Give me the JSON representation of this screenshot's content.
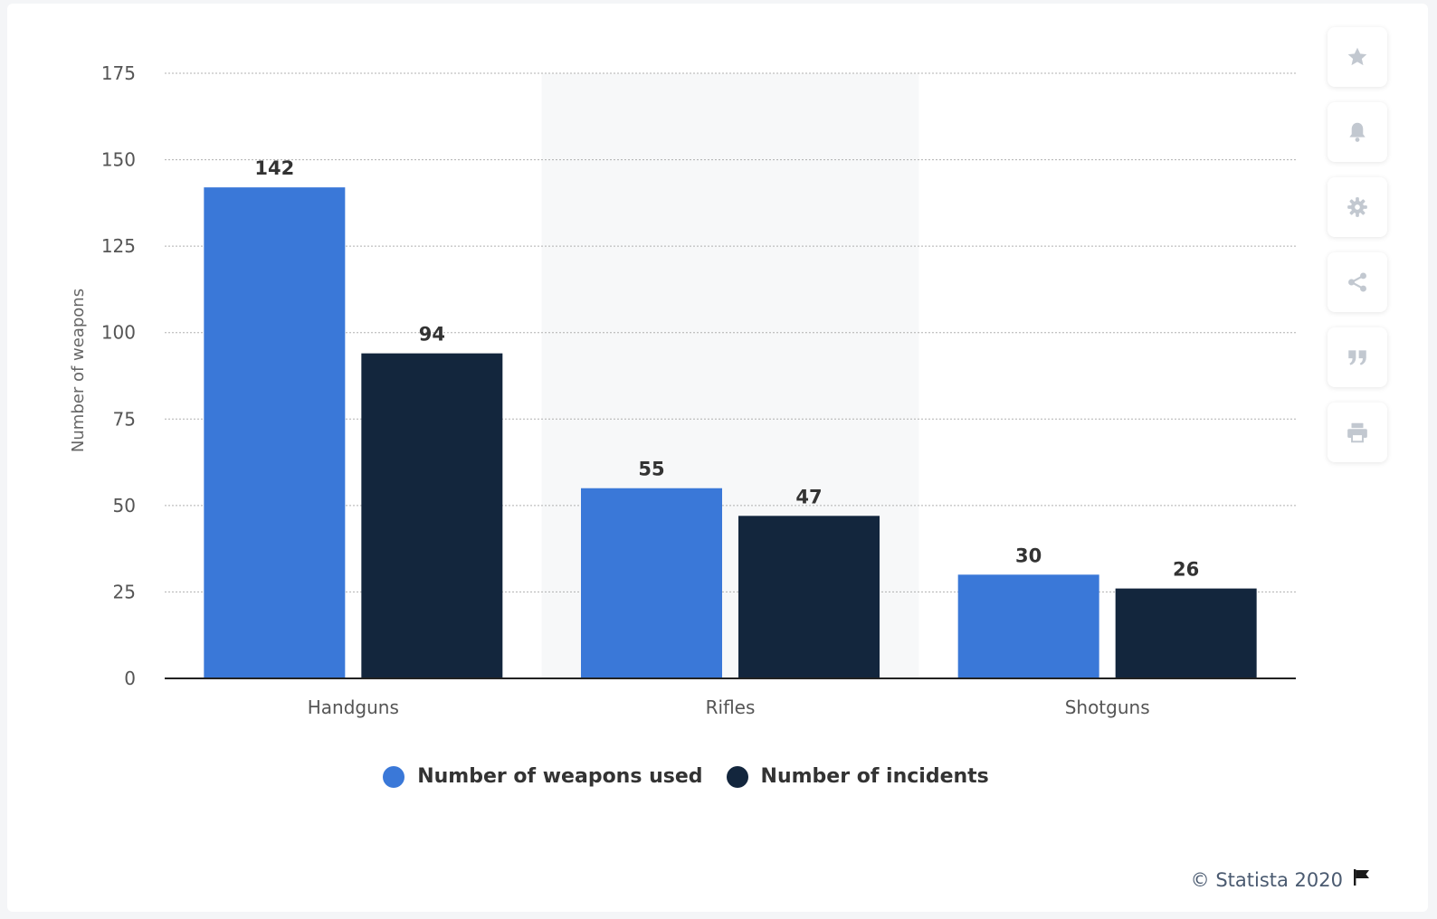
{
  "colors": {
    "series_1": "#3a78d8",
    "series_2": "#13263d",
    "plot_band": "#f7f8f9",
    "grid": "#b0b0b0",
    "axis_text": "#555555",
    "data_label": "#333333"
  },
  "sidebar": {
    "buttons": [
      {
        "icon": "star-icon"
      },
      {
        "icon": "bell-icon"
      },
      {
        "icon": "gear-icon"
      },
      {
        "icon": "share-icon"
      },
      {
        "icon": "quote-icon"
      },
      {
        "icon": "print-icon"
      }
    ]
  },
  "chart_data": {
    "type": "bar",
    "categories": [
      "Handguns",
      "Rifles",
      "Shotguns"
    ],
    "series": [
      {
        "name": "Number of weapons used",
        "values": [
          142,
          55,
          30
        ]
      },
      {
        "name": "Number of incidents",
        "values": [
          94,
          47,
          26
        ]
      }
    ],
    "ylabel": "Number of weapons",
    "ylim": [
      0,
      175
    ],
    "yticks": [
      0,
      25,
      50,
      75,
      100,
      125,
      150,
      175
    ],
    "grid": true,
    "legend_position": "bottom-center"
  },
  "footer": {
    "credit": "© Statista 2020"
  }
}
